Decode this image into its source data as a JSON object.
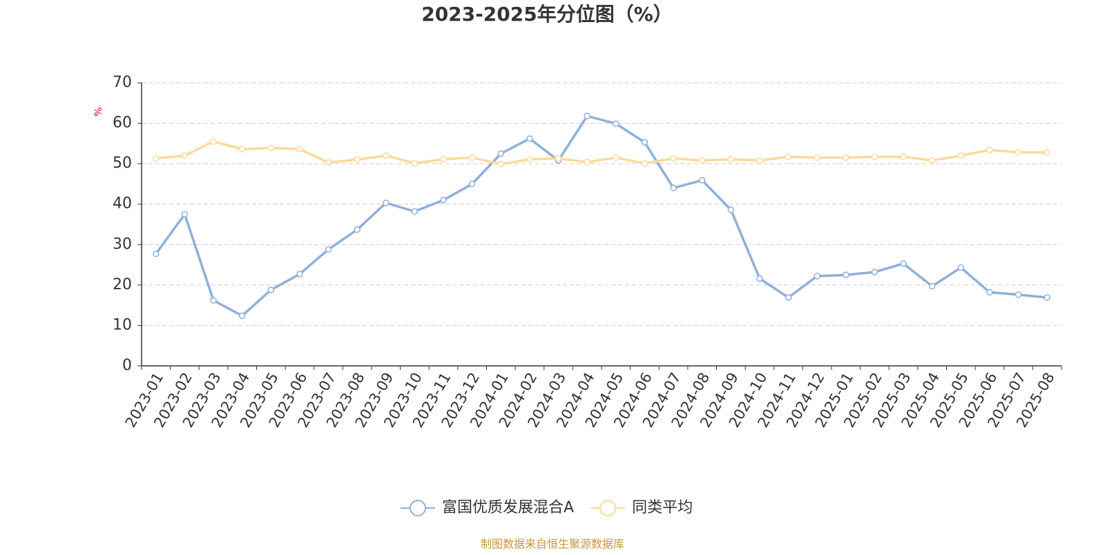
{
  "chart_data": {
    "type": "line",
    "title": "2023-2025年分位图（%）",
    "y_label": "%",
    "source": "制图数据来自恒生聚源数据库",
    "categories": [
      "2023-01",
      "2023-02",
      "2023-03",
      "2023-04",
      "2023-05",
      "2023-06",
      "2023-07",
      "2023-08",
      "2023-09",
      "2023-10",
      "2023-11",
      "2023-12",
      "2024-01",
      "2024-02",
      "2024-03",
      "2024-04",
      "2024-05",
      "2024-06",
      "2024-07",
      "2024-08",
      "2024-09",
      "2024-10",
      "2024-11",
      "2024-12",
      "2025-01",
      "2025-02",
      "2025-03",
      "2025-04",
      "2025-05",
      "2025-06",
      "2025-07",
      "2025-08"
    ],
    "series": [
      {
        "name": "富国优质发展混合A",
        "color": "#8eb0d9",
        "values": [
          27.7,
          37.5,
          16.2,
          12.4,
          18.8,
          22.7,
          28.8,
          33.7,
          40.3,
          38.2,
          41.0,
          45.0,
          52.5,
          56.2,
          50.8,
          61.8,
          59.9,
          55.3,
          44.0,
          45.9,
          38.6,
          21.6,
          16.9,
          22.2,
          22.5,
          23.2,
          25.3,
          19.7,
          24.3,
          18.2,
          17.6,
          16.9
        ]
      },
      {
        "name": "同类平均",
        "color": "#fdd99a",
        "values": [
          51.3,
          52.0,
          55.5,
          53.6,
          53.9,
          53.6,
          50.3,
          51.0,
          52.0,
          50.1,
          51.1,
          51.5,
          49.9,
          51.1,
          51.3,
          50.4,
          51.5,
          50.1,
          51.3,
          50.8,
          51.1,
          50.8,
          51.7,
          51.5,
          51.5,
          51.7,
          51.7,
          50.8,
          52.0,
          53.4,
          52.8,
          52.8
        ]
      }
    ],
    "ylim": [
      0,
      70
    ],
    "yticks": [
      0,
      10,
      20,
      30,
      40,
      50,
      60,
      70
    ],
    "grid": true
  }
}
